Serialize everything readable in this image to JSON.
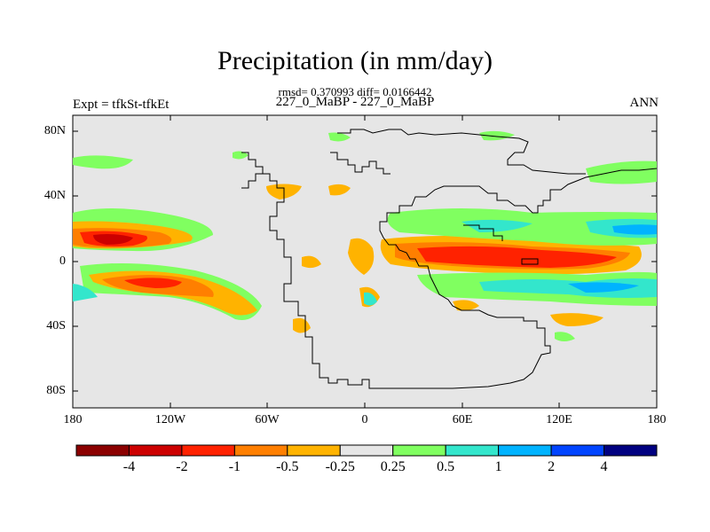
{
  "title": "Precipitation (in mm/day)",
  "stats": "rmsd= 0.370993 diff= 0.0166442",
  "case_label": "227_0_MaBP - 227_0_MaBP",
  "experiment": "Expt = tfkSt-tfkEt",
  "season": "ANN",
  "lat_ticks": [
    "80N",
    "40N",
    "0",
    "40S",
    "80S"
  ],
  "lon_ticks": [
    "180",
    "120W",
    "60W",
    "0",
    "60E",
    "120E",
    "180"
  ],
  "colorbar": {
    "colors": [
      "#8b0000",
      "#cc0000",
      "#ff2200",
      "#ff7f00",
      "#ffb300",
      "#e6e6e6",
      "#80ff60",
      "#33e6cc",
      "#00b3ff",
      "#0044ff",
      "#000080"
    ],
    "labels": [
      "-4",
      "-2",
      "-1",
      "-0.5",
      "-0.25",
      "0.25",
      "0.5",
      "1",
      "2",
      "4"
    ]
  }
}
